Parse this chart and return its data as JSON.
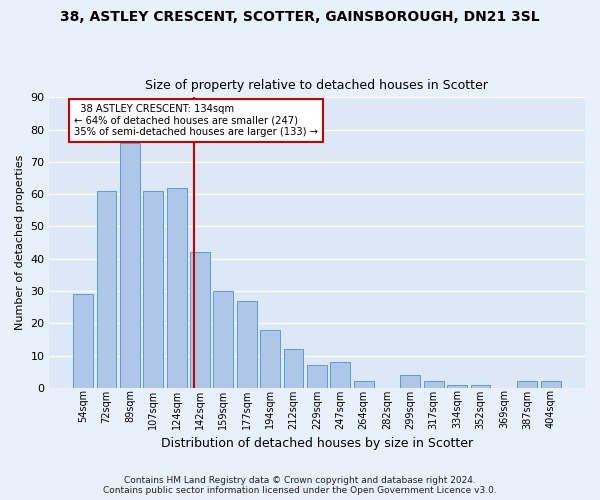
{
  "title": "38, ASTLEY CRESCENT, SCOTTER, GAINSBOROUGH, DN21 3SL",
  "subtitle": "Size of property relative to detached houses in Scotter",
  "xlabel": "Distribution of detached houses by size in Scotter",
  "ylabel": "Number of detached properties",
  "categories": [
    "54sqm",
    "72sqm",
    "89sqm",
    "107sqm",
    "124sqm",
    "142sqm",
    "159sqm",
    "177sqm",
    "194sqm",
    "212sqm",
    "229sqm",
    "247sqm",
    "264sqm",
    "282sqm",
    "299sqm",
    "317sqm",
    "334sqm",
    "352sqm",
    "369sqm",
    "387sqm",
    "404sqm"
  ],
  "values": [
    29,
    61,
    76,
    61,
    62,
    42,
    30,
    27,
    18,
    12,
    7,
    8,
    2,
    0,
    4,
    2,
    1,
    1,
    0,
    2,
    2
  ],
  "bar_color": "#aec6e8",
  "bar_edge_color": "#5b9bd5",
  "vline_x_index": 4.73,
  "marker_label": "38 ASTLEY CRESCENT: 134sqm",
  "pct_smaller": "64% of detached houses are smaller (247)",
  "pct_larger": "35% of semi-detached houses are larger (133)",
  "annotation_box_color": "#ffffff",
  "annotation_border_color": "#cc0000",
  "vline_color": "#cc0000",
  "ylim": [
    0,
    90
  ],
  "yticks": [
    0,
    10,
    20,
    30,
    40,
    50,
    60,
    70,
    80,
    90
  ],
  "background_color": "#dce8f5",
  "grid_color": "#ffffff",
  "title_fontsize": 10,
  "subtitle_fontsize": 9,
  "footer": "Contains HM Land Registry data © Crown copyright and database right 2024.\nContains public sector information licensed under the Open Government Licence v3.0."
}
